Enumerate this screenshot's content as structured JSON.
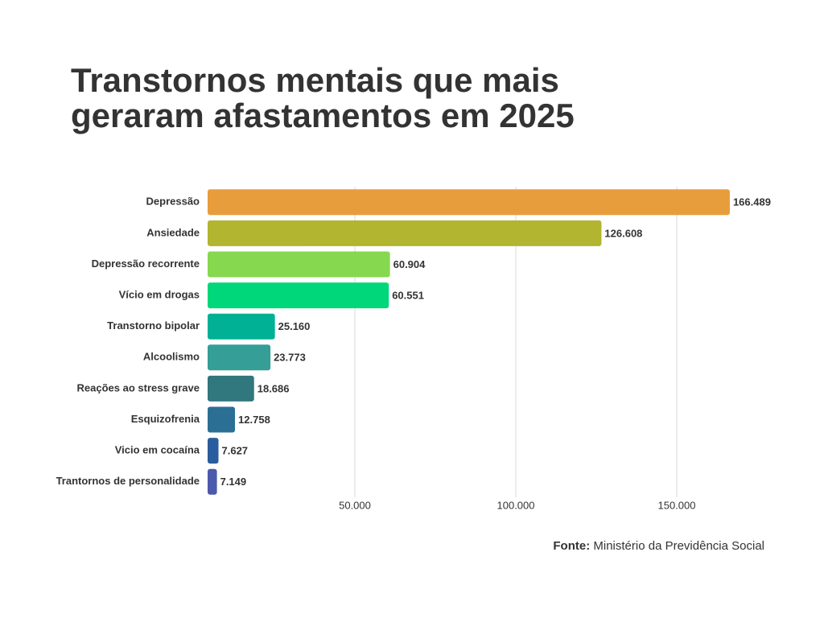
{
  "chart_data": {
    "type": "bar",
    "orientation": "horizontal",
    "title": "Transtornos mentais que mais geraram afastamentos em 2025",
    "categories": [
      "Depressão",
      "Ansiedade",
      "Depressão recorrente",
      "Vício em drogas",
      "Transtorno bipolar",
      "Alcoolismo",
      "Reações ao stress grave",
      "Esquizofrenia",
      "Vicio em cocaína",
      "Trantornos de personalidade"
    ],
    "values": [
      166489,
      126608,
      60904,
      60551,
      25160,
      23773,
      18686,
      12758,
      7627,
      7149
    ],
    "value_labels": [
      "166.489",
      "126.608",
      "60.904",
      "60.551",
      "25.160",
      "23.773",
      "18.686",
      "12.758",
      "7.627",
      "7.149"
    ],
    "colors": [
      "#e89d3c",
      "#b1b52f",
      "#86d84f",
      "#00d77a",
      "#00b195",
      "#349e97",
      "#30777e",
      "#2b6f95",
      "#2a5d9d",
      "#4c5aac"
    ],
    "xlim": [
      4250,
      180000
    ],
    "xticks": [
      {
        "value": 50000,
        "label": "50.000"
      },
      {
        "value": 100000,
        "label": "100.000"
      },
      {
        "value": 150000,
        "label": "150.000"
      }
    ],
    "grid": true,
    "source_label": "Fonte:",
    "source": "Ministério da Previdência Social"
  }
}
